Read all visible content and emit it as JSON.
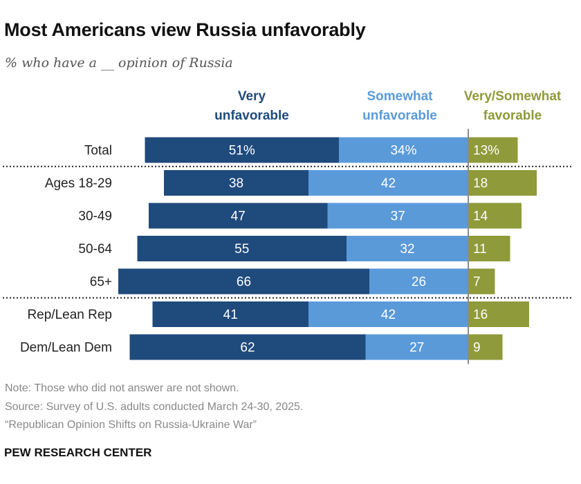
{
  "title": "Most Americans view Russia unfavorably",
  "subtitle": "% who have a __ opinion of Russia",
  "chart_data": {
    "type": "bar",
    "orientation": "horizontal",
    "stacked": true,
    "diverging": true,
    "legend_headers": [
      {
        "lines": [
          "Very",
          "unfavorable"
        ],
        "color": "#1f4a7c"
      },
      {
        "lines": [
          "Somewhat",
          "unfavorable"
        ],
        "color": "#5a9ad9"
      },
      {
        "lines": [
          "Very/Somewhat",
          "favorable"
        ],
        "color": "#8f9a3a"
      }
    ],
    "categories": [
      "Total",
      "Ages 18-29",
      "30-49",
      "50-64",
      "65+",
      "Rep/Lean Rep",
      "Dem/Lean Dem"
    ],
    "series": [
      {
        "name": "Very unfavorable",
        "values": [
          51,
          38,
          47,
          55,
          66,
          41,
          62
        ],
        "color": "#1f4a7c",
        "side": "left"
      },
      {
        "name": "Somewhat unfavorable",
        "values": [
          34,
          42,
          37,
          32,
          26,
          42,
          27
        ],
        "color": "#5a9ad9",
        "side": "left"
      },
      {
        "name": "Very/Somewhat favorable",
        "values": [
          13,
          18,
          14,
          11,
          7,
          16,
          9
        ],
        "color": "#8f9a3a",
        "side": "right"
      }
    ],
    "value_labels": [
      [
        "51%",
        "38",
        "47",
        "55",
        "66",
        "41",
        "62"
      ],
      [
        "34%",
        "42",
        "37",
        "32",
        "26",
        "42",
        "27"
      ],
      [
        "13%",
        "18",
        "14",
        "11",
        "7",
        "16",
        "9"
      ]
    ],
    "separator_after": [
      0,
      4
    ]
  },
  "notes": {
    "note": "Note: Those who did not answer are not shown.",
    "source": "Source: Survey of U.S. adults conducted March 24-30, 2025.",
    "report": "“Republican Opinion Shifts on Russia-Ukraine War”"
  },
  "brand": "PEW RESEARCH CENTER"
}
